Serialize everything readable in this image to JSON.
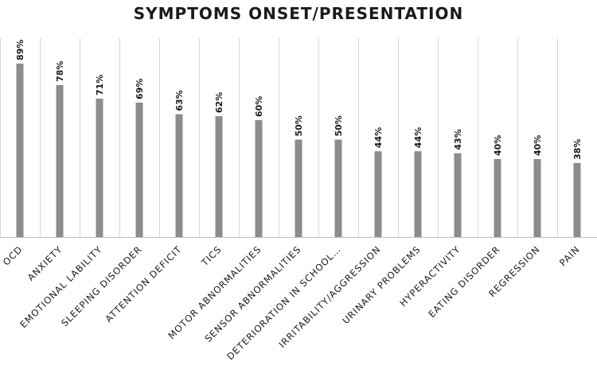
{
  "chart_data": {
    "type": "bar",
    "title": "SYMPTOMS ONSET/PRESENTATION",
    "xlabel": "",
    "ylabel": "",
    "ylim": [
      0,
      100
    ],
    "grid": "vertical category separators",
    "bar_color": "#8c8c8c",
    "categories": [
      "OCD",
      "ANXIETY",
      "EMOTIONAL LABILITY",
      "SLEEPING DISORDER",
      "ATTENTION DEFICIT",
      "TICS",
      "MOTOR ABNORMALITIES",
      "SENSOR ABNORMALITIES",
      "DETERIORATION IN SCHOOL…",
      "IRRITABILITY/AGGRESSION",
      "URINARY PROBLEMS",
      "HYPERACTIVITY",
      "EATING DISORDER",
      "REGRESSION",
      "PAIN"
    ],
    "values": [
      89,
      78,
      71,
      69,
      63,
      62,
      60,
      50,
      50,
      44,
      44,
      43,
      40,
      40,
      38
    ],
    "data_labels": [
      "89%",
      "78%",
      "71%",
      "69%",
      "63%",
      "62%",
      "60%",
      "50%",
      "50%",
      "44%",
      "44%",
      "43%",
      "40%",
      "40%",
      "38%"
    ]
  }
}
